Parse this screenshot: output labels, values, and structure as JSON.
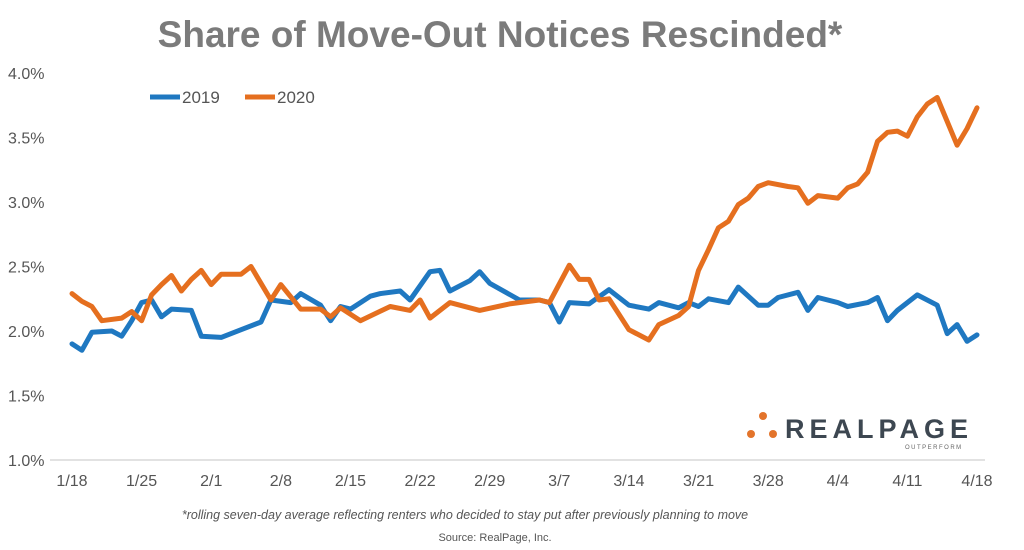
{
  "chart_data": {
    "type": "line",
    "title": "Share of Move-Out Notices Rescinded*",
    "footnote": "*rolling seven-day average reflecting renters who decided to stay put after previously planning to move",
    "source": "Source: RealPage, Inc.",
    "logo": {
      "text": "REALPAGE",
      "tagline": "OUTPERFORM"
    },
    "xlabel": "",
    "ylabel": "",
    "ylim": [
      1.0,
      4.0
    ],
    "yticks": [
      "1.0%",
      "1.5%",
      "2.0%",
      "2.5%",
      "3.0%",
      "3.5%",
      "4.0%"
    ],
    "xticks": [
      "1/18",
      "1/25",
      "2/1",
      "2/8",
      "2/15",
      "2/22",
      "2/29",
      "3/7",
      "3/14",
      "3/21",
      "3/28",
      "4/4",
      "4/11",
      "4/18"
    ],
    "grid": false,
    "legend_position": "top-left",
    "series": [
      {
        "name": "2019",
        "color": "#1f78c1",
        "points": [
          [
            "1/18",
            1.9
          ],
          [
            "1/19",
            1.85
          ],
          [
            "1/20",
            1.99
          ],
          [
            "1/22",
            2.0
          ],
          [
            "1/23",
            1.96
          ],
          [
            "1/24",
            2.08
          ],
          [
            "1/25",
            2.22
          ],
          [
            "1/26",
            2.24
          ],
          [
            "1/27",
            2.11
          ],
          [
            "1/28",
            2.17
          ],
          [
            "1/30",
            2.16
          ],
          [
            "1/31",
            1.96
          ],
          [
            "2/2",
            1.95
          ],
          [
            "2/4",
            2.01
          ],
          [
            "2/6",
            2.07
          ],
          [
            "2/7",
            2.24
          ],
          [
            "2/9",
            2.22
          ],
          [
            "2/10",
            2.29
          ],
          [
            "2/12",
            2.2
          ],
          [
            "2/13",
            2.08
          ],
          [
            "2/14",
            2.19
          ],
          [
            "2/15",
            2.17
          ],
          [
            "2/17",
            2.27
          ],
          [
            "2/18",
            2.29
          ],
          [
            "2/20",
            2.31
          ],
          [
            "2/21",
            2.24
          ],
          [
            "2/23",
            2.46
          ],
          [
            "2/24",
            2.47
          ],
          [
            "2/25",
            2.31
          ],
          [
            "2/27",
            2.39
          ],
          [
            "2/28",
            2.46
          ],
          [
            "2/29",
            2.37
          ],
          [
            "3/3",
            2.24
          ],
          [
            "3/5",
            2.24
          ],
          [
            "3/6",
            2.22
          ],
          [
            "3/7",
            2.07
          ],
          [
            "3/8",
            2.22
          ],
          [
            "3/10",
            2.21
          ],
          [
            "3/12",
            2.32
          ],
          [
            "3/14",
            2.2
          ],
          [
            "3/16",
            2.17
          ],
          [
            "3/17",
            2.22
          ],
          [
            "3/19",
            2.18
          ],
          [
            "3/20",
            2.22
          ],
          [
            "3/21",
            2.19
          ],
          [
            "3/22",
            2.25
          ],
          [
            "3/24",
            2.22
          ],
          [
            "3/25",
            2.34
          ],
          [
            "3/27",
            2.2
          ],
          [
            "3/28",
            2.2
          ],
          [
            "3/29",
            2.26
          ],
          [
            "3/31",
            2.3
          ],
          [
            "4/1",
            2.16
          ],
          [
            "4/2",
            2.26
          ],
          [
            "4/4",
            2.22
          ],
          [
            "4/5",
            2.19
          ],
          [
            "4/7",
            2.22
          ],
          [
            "4/8",
            2.26
          ],
          [
            "4/9",
            2.08
          ],
          [
            "4/10",
            2.16
          ],
          [
            "4/12",
            2.28
          ],
          [
            "4/14",
            2.2
          ],
          [
            "4/15",
            1.98
          ],
          [
            "4/16",
            2.05
          ],
          [
            "4/17",
            1.92
          ],
          [
            "4/18",
            1.97
          ]
        ]
      },
      {
        "name": "2020",
        "color": "#e56f1f",
        "points": [
          [
            "1/18",
            2.29
          ],
          [
            "1/19",
            2.23
          ],
          [
            "1/20",
            2.19
          ],
          [
            "1/21",
            2.08
          ],
          [
            "1/23",
            2.1
          ],
          [
            "1/24",
            2.15
          ],
          [
            "1/25",
            2.08
          ],
          [
            "1/26",
            2.28
          ],
          [
            "1/27",
            2.36
          ],
          [
            "1/28",
            2.43
          ],
          [
            "1/29",
            2.31
          ],
          [
            "1/30",
            2.4
          ],
          [
            "1/31",
            2.47
          ],
          [
            "2/1",
            2.36
          ],
          [
            "2/2",
            2.44
          ],
          [
            "2/4",
            2.44
          ],
          [
            "2/5",
            2.5
          ],
          [
            "2/7",
            2.24
          ],
          [
            "2/8",
            2.36
          ],
          [
            "2/10",
            2.17
          ],
          [
            "2/12",
            2.17
          ],
          [
            "2/13",
            2.11
          ],
          [
            "2/14",
            2.18
          ],
          [
            "2/16",
            2.08
          ],
          [
            "2/19",
            2.19
          ],
          [
            "2/21",
            2.16
          ],
          [
            "2/22",
            2.24
          ],
          [
            "2/23",
            2.1
          ],
          [
            "2/25",
            2.22
          ],
          [
            "2/28",
            2.16
          ],
          [
            "3/2",
            2.21
          ],
          [
            "3/5",
            2.24
          ],
          [
            "3/6",
            2.22
          ],
          [
            "3/8",
            2.51
          ],
          [
            "3/9",
            2.4
          ],
          [
            "3/10",
            2.4
          ],
          [
            "3/11",
            2.24
          ],
          [
            "3/12",
            2.25
          ],
          [
            "3/14",
            2.01
          ],
          [
            "3/16",
            1.93
          ],
          [
            "3/17",
            2.05
          ],
          [
            "3/19",
            2.12
          ],
          [
            "3/20",
            2.19
          ],
          [
            "3/21",
            2.47
          ],
          [
            "3/22",
            2.63
          ],
          [
            "3/23",
            2.8
          ],
          [
            "3/24",
            2.85
          ],
          [
            "3/25",
            2.98
          ],
          [
            "3/26",
            3.03
          ],
          [
            "3/27",
            3.12
          ],
          [
            "3/28",
            3.15
          ],
          [
            "3/30",
            3.12
          ],
          [
            "3/31",
            3.11
          ],
          [
            "4/1",
            2.99
          ],
          [
            "4/2",
            3.05
          ],
          [
            "4/4",
            3.03
          ],
          [
            "4/5",
            3.11
          ],
          [
            "4/6",
            3.14
          ],
          [
            "4/7",
            3.23
          ],
          [
            "4/8",
            3.47
          ],
          [
            "4/9",
            3.54
          ],
          [
            "4/10",
            3.55
          ],
          [
            "4/11",
            3.51
          ],
          [
            "4/12",
            3.66
          ],
          [
            "4/13",
            3.76
          ],
          [
            "4/14",
            3.81
          ],
          [
            "4/16",
            3.44
          ],
          [
            "4/17",
            3.57
          ],
          [
            "4/18",
            3.73
          ]
        ]
      }
    ]
  }
}
